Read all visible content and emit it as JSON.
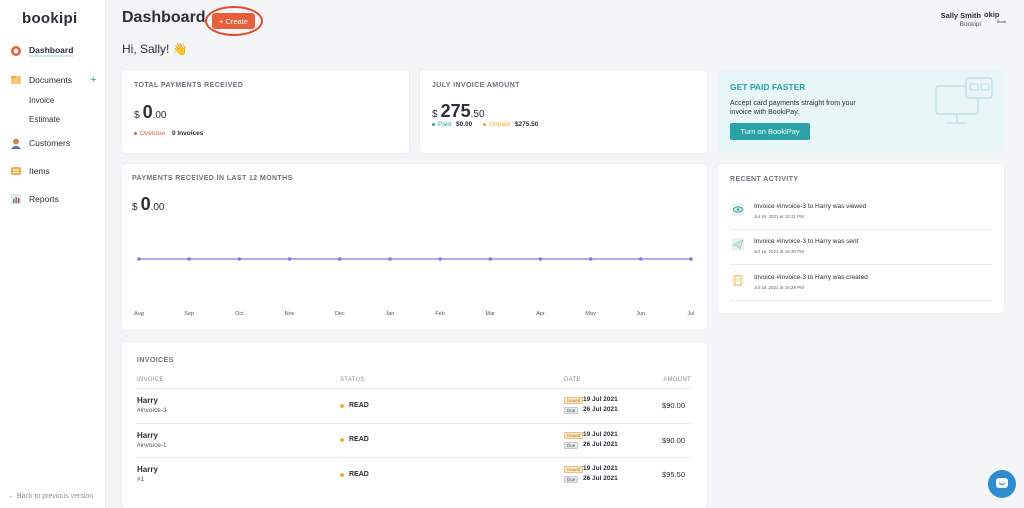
{
  "sidebar": {
    "logo": "bookipi",
    "items": [
      {
        "label": "Dashboard"
      },
      {
        "label": "Documents"
      },
      {
        "label": "Invoice"
      },
      {
        "label": "Estimate"
      },
      {
        "label": "Customers"
      },
      {
        "label": "Items"
      },
      {
        "label": "Reports"
      }
    ],
    "add_symbol": "+",
    "back_link": "← Back to previous version"
  },
  "header": {
    "title": "Dashboard",
    "create_label": "+ Create",
    "greeting": "Hi, Sally! 👋",
    "user_name": "Sally Smith",
    "user_company": "Bookipi",
    "user_logo": "okip",
    "user_logo_sub": "Book"
  },
  "total_payments": {
    "title": "TOTAL PAYMENTS RECEIVED",
    "currency": "$",
    "amount_int": "0",
    "amount_dec": ".00",
    "overdue_label": "Overdue",
    "overdue_value": "0 Invoices"
  },
  "july_invoice": {
    "title": "JULY INVOICE AMOUNT",
    "currency": "$",
    "amount_int": "275",
    "amount_dec": ".50",
    "paid_label": "Paid",
    "paid_value": "$0.00",
    "unpaid_label": "Unpaid",
    "unpaid_value": "$275.50"
  },
  "promo": {
    "title": "GET PAID FASTER",
    "text": "Accept card payments straight from your invoice with BookiPay.",
    "button": "Turn on BookiPay"
  },
  "payments_chart": {
    "title": "PAYMENTS RECEIVED IN LAST 12 MONTHS",
    "currency": "$",
    "amount_int": "0",
    "amount_dec": ".00"
  },
  "chart_data": {
    "type": "line",
    "categories": [
      "Aug",
      "Sep",
      "Oct",
      "Nov",
      "Dec",
      "Jan",
      "Feb",
      "Mar",
      "Apr",
      "May",
      "Jun",
      "Jul"
    ],
    "values": [
      0,
      0,
      0,
      0,
      0,
      0,
      0,
      0,
      0,
      0,
      0,
      0
    ],
    "line_color": "#8a79d8"
  },
  "recent_activity": {
    "title": "RECENT ACTIVITY",
    "items": [
      {
        "text": "Invoice #invoice-3 to Harry was viewed",
        "time": "Jul 19, 2021 at 16:31 PM",
        "icon": "eye-icon"
      },
      {
        "text": "Invoice #invoice-3 to Harry was sent",
        "time": "Jul 19, 2021 at 16:30 PM",
        "icon": "paper-plane-icon"
      },
      {
        "text": "Invoice #invoice-3 to Harry was created",
        "time": "Jul 19, 2021 at 16:28 PM",
        "icon": "document-icon"
      }
    ]
  },
  "invoices": {
    "title": "INVOICES",
    "headers": {
      "invoice": "INVOICE",
      "status": "STATUS",
      "date": "DATE",
      "amount": "AMOUNT"
    },
    "issued_label": "Issued",
    "due_label": "Due",
    "rows": [
      {
        "customer": "Harry",
        "number": "#invoice-3",
        "status": "READ",
        "issued": "19 Jul 2021",
        "due": "26 Jul 2021",
        "amount": "$90.00"
      },
      {
        "customer": "Harry",
        "number": "#invoice-1",
        "status": "READ",
        "issued": "19 Jul 2021",
        "due": "26 Jul 2021",
        "amount": "$90.00"
      },
      {
        "customer": "Harry",
        "number": "#1",
        "status": "READ",
        "issued": "19 Jul 2021",
        "due": "26 Jul 2021",
        "amount": "$95.50"
      }
    ]
  },
  "colors": {
    "accent": "#2aa3a8",
    "create": "#e8603a",
    "overdue_dot": "#e8603a",
    "paid_dot": "#2aa3a8",
    "unpaid_dot": "#f0a030",
    "status_dot": "#f0b030"
  }
}
